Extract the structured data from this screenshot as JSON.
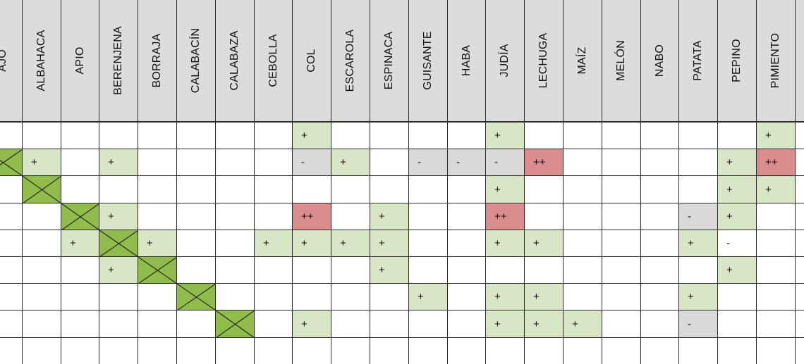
{
  "colors": {
    "header_bg": "#dcdcdc",
    "good": "#d8e6c6",
    "very_good": "#db8c8c",
    "bad": "#d9d9d9",
    "self": "#8fbc4a",
    "grid": "#2a2a2a"
  },
  "columns": [
    "AJO",
    "ALBAHACA",
    "APIO",
    "BERENJENA",
    "BORRAJA",
    "CALABACÍN",
    "CALABAZA",
    "CEBOLLA",
    "COL",
    "ESCAROLA",
    "ESPINACA",
    "GUISANTE",
    "HABA",
    "JUDÍA",
    "LECHUGA",
    "MAÍZ",
    "MELÓN",
    "NABO",
    "PATATA",
    "PEPINO",
    "PIMIENTO"
  ],
  "rows": [
    [
      {
        "c": 8,
        "v": "+",
        "t": "good"
      },
      {
        "c": 13,
        "v": "+",
        "t": "good"
      },
      {
        "c": 20,
        "v": "+",
        "t": "good"
      }
    ],
    [
      {
        "c": 0,
        "t": "self"
      },
      {
        "c": 1,
        "v": "+",
        "t": "good"
      },
      {
        "c": 3,
        "v": "+",
        "t": "good"
      },
      {
        "c": 8,
        "v": "-",
        "t": "bad"
      },
      {
        "c": 9,
        "v": "+",
        "t": "good"
      },
      {
        "c": 11,
        "v": "-",
        "t": "bad"
      },
      {
        "c": 12,
        "v": "-",
        "t": "bad"
      },
      {
        "c": 13,
        "v": "-",
        "t": "bad"
      },
      {
        "c": 14,
        "v": "++",
        "t": "very_good"
      },
      {
        "c": 19,
        "v": "+",
        "t": "good"
      },
      {
        "c": 20,
        "v": "++",
        "t": "very_good"
      }
    ],
    [
      {
        "c": 1,
        "t": "self"
      },
      {
        "c": 13,
        "v": "+",
        "t": "good"
      },
      {
        "c": 19,
        "v": "+",
        "t": "good"
      },
      {
        "c": 20,
        "v": "+",
        "t": "good"
      }
    ],
    [
      {
        "c": 2,
        "t": "self"
      },
      {
        "c": 3,
        "v": "+",
        "t": "good"
      },
      {
        "c": 8,
        "v": "++",
        "t": "very_good"
      },
      {
        "c": 10,
        "v": "+",
        "t": "good"
      },
      {
        "c": 13,
        "v": "++",
        "t": "very_good"
      },
      {
        "c": 18,
        "v": "-",
        "t": "bad"
      },
      {
        "c": 19,
        "v": "+",
        "t": "good"
      }
    ],
    [
      {
        "c": 2,
        "v": "+",
        "t": "good"
      },
      {
        "c": 3,
        "t": "self"
      },
      {
        "c": 4,
        "v": "+",
        "t": "good"
      },
      {
        "c": 7,
        "v": "+",
        "t": "good"
      },
      {
        "c": 8,
        "v": "+",
        "t": "good"
      },
      {
        "c": 9,
        "v": "+",
        "t": "good"
      },
      {
        "c": 10,
        "v": "+",
        "t": "good"
      },
      {
        "c": 13,
        "v": "+",
        "t": "good"
      },
      {
        "c": 14,
        "v": "+",
        "t": "good"
      },
      {
        "c": 18,
        "v": "+",
        "t": "good"
      },
      {
        "c": 19,
        "v": "-",
        "t": "none"
      }
    ],
    [
      {
        "c": 3,
        "v": "+",
        "t": "good"
      },
      {
        "c": 4,
        "t": "self"
      },
      {
        "c": 10,
        "v": "+",
        "t": "good"
      },
      {
        "c": 19,
        "v": "+",
        "t": "good"
      }
    ],
    [
      {
        "c": 5,
        "t": "self"
      },
      {
        "c": 11,
        "v": "+",
        "t": "good"
      },
      {
        "c": 13,
        "v": "+",
        "t": "good"
      },
      {
        "c": 14,
        "v": "+",
        "t": "good"
      },
      {
        "c": 18,
        "v": "+",
        "t": "good"
      }
    ],
    [
      {
        "c": 6,
        "t": "self"
      },
      {
        "c": 8,
        "v": "+",
        "t": "good"
      },
      {
        "c": 13,
        "v": "+",
        "t": "good"
      },
      {
        "c": 14,
        "v": "+",
        "t": "good"
      },
      {
        "c": 15,
        "v": "+",
        "t": "good"
      },
      {
        "c": 18,
        "v": "-",
        "t": "bad"
      }
    ]
  ]
}
